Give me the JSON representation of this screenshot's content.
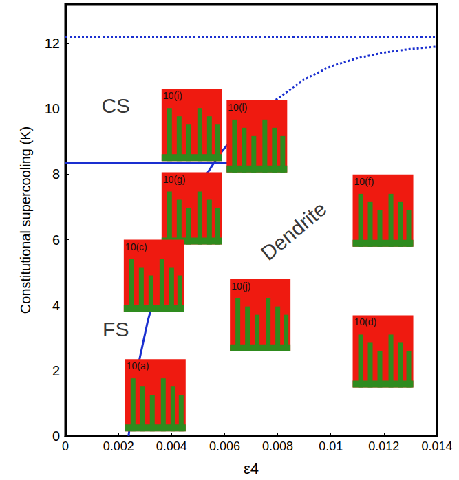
{
  "chart_data": {
    "type": "line",
    "x_label": "ε4",
    "y_label": "Constitutional supercooling (K)",
    "xlim": [
      0,
      0.014
    ],
    "xticks": [
      0,
      0.002,
      0.004,
      0.006,
      0.008,
      0.01,
      0.012,
      0.014
    ],
    "ylim": [
      0,
      13.2
    ],
    "yticks": [
      0,
      2,
      4,
      6,
      8,
      10,
      12
    ],
    "grid": false,
    "series": [
      {
        "color": "#1a2fd0",
        "line_style": "solid",
        "x": [
          0.00238,
          0.0027,
          0.0031,
          0.0036,
          0.0043,
          0.005,
          0.0058,
          0.0068,
          0.0078
        ],
        "values": [
          0,
          2,
          3.5,
          5,
          6.5,
          7.6,
          8.6,
          9.6,
          10.2
        ]
      },
      {
        "color": "#1a2fd0",
        "line_style": "dotted",
        "x": [
          0.0078,
          0.009,
          0.01,
          0.011,
          0.012,
          0.013,
          0.014
        ],
        "values": [
          10.2,
          10.9,
          11.3,
          11.55,
          11.72,
          11.83,
          11.9
        ]
      },
      {
        "color": "#1a2fd0",
        "line_style": "solid",
        "x": [
          0,
          0.0061
        ],
        "values": [
          8.35,
          8.35
        ]
      },
      {
        "color": "#1a2fd0",
        "line_style": "dotted",
        "x": [
          0,
          0.014
        ],
        "values": [
          12.2,
          12.2
        ]
      }
    ],
    "regions": [
      {
        "text": "CS",
        "x": 0.0019,
        "y": 10.1
      },
      {
        "text": "FS",
        "x": 0.0019,
        "y": 3.27
      },
      {
        "text": "Dendrite",
        "x": 0.0086,
        "y": 6.27
      }
    ],
    "insets": [
      {
        "label": "10(i)",
        "x": 0.003625,
        "y": 10.61
      },
      {
        "label": "10(l)",
        "x": 0.006075,
        "y": 10.26
      },
      {
        "label": "10(g)",
        "x": 0.003625,
        "y": 8.06
      },
      {
        "label": "10(f)",
        "x": 0.010825,
        "y": 7.99
      },
      {
        "label": "10(c)",
        "x": 0.0022,
        "y": 6.0
      },
      {
        "label": "10(j)",
        "x": 0.0062,
        "y": 4.8
      },
      {
        "label": "10(d)",
        "x": 0.010825,
        "y": 3.69
      },
      {
        "label": "10(a)",
        "x": 0.00225,
        "y": 2.35
      }
    ]
  }
}
